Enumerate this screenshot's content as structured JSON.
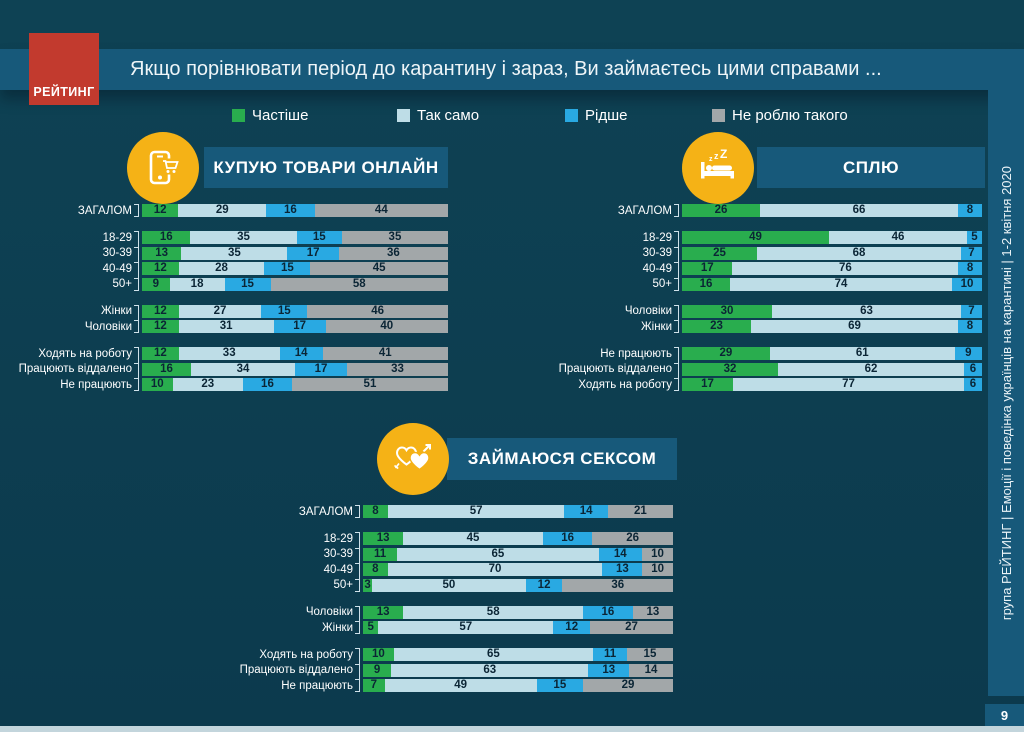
{
  "slide": {
    "logo": "РЕЙТИНГ",
    "title": "Якщо порівнювати  період до карантину і зараз, Ви займаєтесь цими справами  ...",
    "sidebar": "група РЕЙТИНГ  |  Емоції і поведінка українців на карантині  |  1-2 квітня 2020",
    "page_number": "9"
  },
  "legend": [
    {
      "label": "Частіше",
      "color": "#29ad4e"
    },
    {
      "label": "Так само",
      "color": "#bedde7"
    },
    {
      "label": "Рідше",
      "color": "#29a9e2"
    },
    {
      "label": "Не роблю такого",
      "color": "#a2a7a9"
    }
  ],
  "chart_data": [
    {
      "type": "bar",
      "subtype": "horizontal-stacked",
      "title": "КУПУЮ ТОВАРИ ОНЛАЙН",
      "icon": "phone-shopping-cart-icon",
      "unit": "percent",
      "xlim": [
        0,
        100
      ],
      "series": [
        "Частіше",
        "Так само",
        "Рідше",
        "Не роблю такого"
      ],
      "groups": [
        {
          "rows": [
            {
              "label": "ЗАГАЛОМ",
              "values": [
                12,
                29,
                16,
                44
              ]
            }
          ]
        },
        {
          "rows": [
            {
              "label": "18-29",
              "values": [
                16,
                35,
                15,
                35
              ]
            },
            {
              "label": "30-39",
              "values": [
                13,
                35,
                17,
                36
              ]
            },
            {
              "label": "40-49",
              "values": [
                12,
                28,
                15,
                45
              ]
            },
            {
              "label": "50+",
              "values": [
                9,
                18,
                15,
                58
              ]
            }
          ]
        },
        {
          "rows": [
            {
              "label": "Жінки",
              "values": [
                12,
                27,
                15,
                46
              ]
            },
            {
              "label": "Чоловіки",
              "values": [
                12,
                31,
                17,
                40
              ]
            }
          ]
        },
        {
          "rows": [
            {
              "label": "Ходять на роботу",
              "values": [
                12,
                33,
                14,
                41
              ]
            },
            {
              "label": "Працюють віддалено",
              "values": [
                16,
                34,
                17,
                33
              ]
            },
            {
              "label": "Не працюють",
              "values": [
                10,
                23,
                16,
                51
              ]
            }
          ]
        }
      ]
    },
    {
      "type": "bar",
      "subtype": "horizontal-stacked",
      "title": "СПЛЮ",
      "icon": "sleeping-bed-icon",
      "unit": "percent",
      "xlim": [
        0,
        100
      ],
      "series": [
        "Частіше",
        "Так само",
        "Рідше",
        "Не роблю такого"
      ],
      "groups": [
        {
          "rows": [
            {
              "label": "ЗАГАЛОМ",
              "values": [
                26,
                66,
                8,
                0
              ]
            }
          ]
        },
        {
          "rows": [
            {
              "label": "18-29",
              "values": [
                49,
                46,
                5,
                0
              ]
            },
            {
              "label": "30-39",
              "values": [
                25,
                68,
                7,
                0
              ]
            },
            {
              "label": "40-49",
              "values": [
                17,
                76,
                8,
                0
              ]
            },
            {
              "label": "50+",
              "values": [
                16,
                74,
                10,
                0
              ]
            }
          ]
        },
        {
          "rows": [
            {
              "label": "Чоловіки",
              "values": [
                30,
                63,
                7,
                0
              ]
            },
            {
              "label": "Жінки",
              "values": [
                23,
                69,
                8,
                0
              ]
            }
          ]
        },
        {
          "rows": [
            {
              "label": "Не працюють",
              "values": [
                29,
                61,
                9,
                0
              ]
            },
            {
              "label": "Працюють віддалено",
              "values": [
                32,
                62,
                6,
                0
              ]
            },
            {
              "label": "Ходять на роботу",
              "values": [
                17,
                77,
                6,
                0
              ]
            }
          ]
        }
      ]
    },
    {
      "type": "bar",
      "subtype": "horizontal-stacked",
      "title": "ЗАЙМАЮСЯ СЕКСОМ",
      "icon": "hearts-icon",
      "unit": "percent",
      "xlim": [
        0,
        100
      ],
      "series": [
        "Частіше",
        "Так само",
        "Рідше",
        "Не роблю такого"
      ],
      "groups": [
        {
          "rows": [
            {
              "label": "ЗАГАЛОМ",
              "values": [
                8,
                57,
                14,
                21
              ]
            }
          ]
        },
        {
          "rows": [
            {
              "label": "18-29",
              "values": [
                13,
                45,
                16,
                26
              ]
            },
            {
              "label": "30-39",
              "values": [
                11,
                65,
                14,
                10
              ]
            },
            {
              "label": "40-49",
              "values": [
                8,
                70,
                13,
                10
              ]
            },
            {
              "label": "50+",
              "values": [
                3,
                50,
                12,
                36
              ]
            }
          ]
        },
        {
          "rows": [
            {
              "label": "Чоловіки",
              "values": [
                13,
                58,
                16,
                13
              ]
            },
            {
              "label": "Жінки",
              "values": [
                5,
                57,
                12,
                27
              ]
            }
          ]
        },
        {
          "rows": [
            {
              "label": "Ходять на роботу",
              "values": [
                10,
                65,
                11,
                15
              ]
            },
            {
              "label": "Працюють віддалено",
              "values": [
                9,
                63,
                13,
                14
              ]
            },
            {
              "label": "Не працюють",
              "values": [
                7,
                49,
                15,
                29
              ]
            }
          ]
        }
      ]
    }
  ]
}
